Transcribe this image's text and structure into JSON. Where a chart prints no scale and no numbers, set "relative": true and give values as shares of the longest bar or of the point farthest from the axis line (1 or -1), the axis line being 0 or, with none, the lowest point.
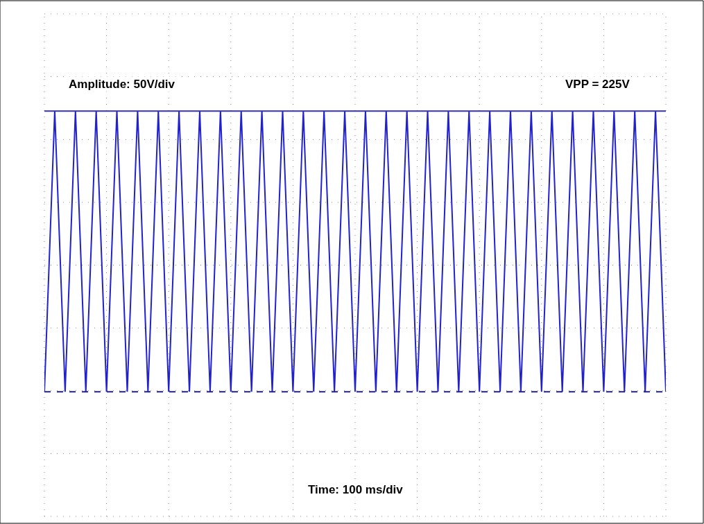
{
  "chart_data": {
    "type": "line",
    "relative": true,
    "categories": [
      null,
      null,
      null,
      null,
      null,
      null,
      null,
      null,
      null,
      null,
      null,
      null,
      null,
      null,
      null,
      null,
      null,
      null,
      null,
      null,
      null,
      null,
      null,
      null,
      null,
      null,
      null,
      null,
      null,
      null,
      null,
      null,
      null,
      null,
      null,
      null,
      null,
      null,
      null,
      null,
      null,
      null,
      null,
      null,
      null,
      null,
      null,
      null,
      null,
      null,
      null,
      null,
      null,
      null,
      null,
      null,
      null,
      null,
      null,
      null,
      null,
      null,
      null,
      null,
      null,
      null,
      null,
      null,
      null,
      null,
      null,
      null,
      null,
      null,
      null,
      null,
      null,
      null,
      null,
      null,
      null,
      null,
      null,
      null,
      null,
      null,
      null,
      null,
      null,
      null,
      null,
      null,
      null,
      null,
      null,
      null,
      null,
      null,
      null,
      null,
      null,
      null,
      null,
      null,
      null,
      null,
      null,
      null,
      null,
      null,
      null,
      null,
      null,
      null,
      null,
      null,
      null,
      null,
      null,
      null,
      null
    ],
    "series": [
      {
        "color": "#2222cc",
        "values": [
          0,
          0.5,
          1,
          0.5,
          0,
          0.5,
          1,
          0.5,
          0,
          0.5,
          1,
          0.5,
          0,
          0.5,
          1,
          0.5,
          0,
          0.5,
          1,
          0.5,
          0,
          0.5,
          1,
          0.5,
          0,
          0.5,
          1,
          0.5,
          0,
          0.5,
          1,
          0.5,
          0,
          0.5,
          1,
          0.5,
          0,
          0.5,
          1,
          0.5,
          0,
          0.5,
          1,
          0.5,
          0,
          0.5,
          1,
          0.5,
          0,
          0.5,
          1,
          0.5,
          0,
          0.5,
          1,
          0.5,
          0,
          0.5,
          1,
          0.5,
          0,
          0.5,
          1,
          0.5,
          0,
          0.5,
          1,
          0.5,
          0,
          0.5,
          1,
          0.5,
          0,
          0.5,
          1,
          0.5,
          0,
          0.5,
          1,
          0.5,
          0,
          0.5,
          1,
          0.5,
          0,
          0.5,
          1,
          0.5,
          0,
          0.5,
          1,
          0.5,
          0,
          0.5,
          1,
          0.5,
          0,
          0.5,
          1,
          0.5,
          0,
          0.5,
          1,
          0.5,
          0,
          0.5,
          1,
          0.5,
          0,
          0.5,
          1,
          0.5,
          0,
          0.5,
          1,
          0.5,
          0,
          0.5,
          1,
          0.5,
          0
        ]
      }
    ],
    "ref_lines": [
      {
        "axis": "y",
        "value": 1,
        "color": "#3333aa",
        "line_style": "solid"
      },
      {
        "axis": "y",
        "value": 0,
        "color": "#222288",
        "line_style": "dashed"
      }
    ],
    "annotations": [
      "Amplitude: 50V/div",
      "VPP = 225V",
      "Time: 100 ms/div"
    ],
    "grid": true,
    "marker": "none",
    "line_style": "solid"
  }
}
